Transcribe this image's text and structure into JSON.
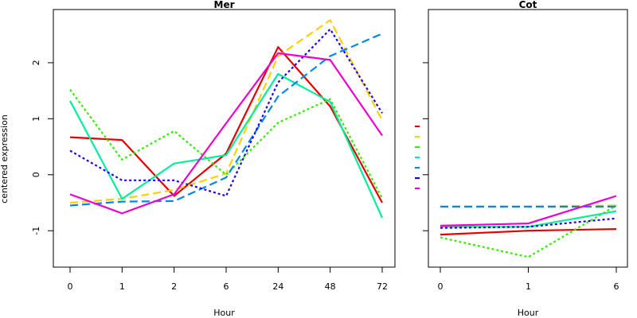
{
  "chart_data": {
    "type": "line",
    "ylabel": "centered expression",
    "ylim": [
      -1.65,
      2.95
    ],
    "y_ticks": [
      -1,
      0,
      1,
      2
    ],
    "y_tick_labels": [
      "-1",
      "0",
      "1",
      "2"
    ],
    "series_style": [
      {
        "color": "#e60000",
        "dash": "solid"
      },
      {
        "color": "#ffd000",
        "dash": "long"
      },
      {
        "color": "#33ee00",
        "dash": "dotted"
      },
      {
        "color": "#00ee99",
        "dash": "solid"
      },
      {
        "color": "#0088ee",
        "dash": "long"
      },
      {
        "color": "#2200ee",
        "dash": "dotted"
      },
      {
        "color": "#ee00cc",
        "dash": "solid"
      }
    ],
    "legend": {
      "placement": "middle-right",
      "labels": [
        "",
        "",
        "",
        "",
        "",
        "",
        ""
      ]
    },
    "panels": [
      {
        "title": "Mer",
        "xlabel": "Hour",
        "categories": [
          "0",
          "1",
          "2",
          "6",
          "24",
          "48",
          "72"
        ],
        "series": [
          {
            "values": [
              0.67,
              0.62,
              -0.38,
              0.38,
              2.28,
              1.22,
              -0.5
            ]
          },
          {
            "values": [
              -0.5,
              -0.43,
              -0.27,
              0.02,
              2.12,
              2.76,
              0.97
            ]
          },
          {
            "values": [
              1.52,
              0.27,
              0.78,
              0.0,
              0.93,
              1.35,
              -0.42
            ]
          },
          {
            "values": [
              1.32,
              -0.43,
              0.2,
              0.35,
              1.8,
              1.3,
              -0.77
            ]
          },
          {
            "values": [
              -0.55,
              -0.48,
              -0.47,
              -0.05,
              1.4,
              2.12,
              2.52
            ]
          },
          {
            "values": [
              0.43,
              -0.1,
              -0.1,
              -0.38,
              1.65,
              2.6,
              1.1
            ]
          },
          {
            "values": [
              -0.35,
              -0.69,
              -0.35,
              0.92,
              2.17,
              2.05,
              0.7
            ]
          }
        ]
      },
      {
        "title": "Cot",
        "xlabel": "Hour",
        "categories": [
          "0",
          "1",
          "6"
        ],
        "series": [
          {
            "values": [
              -1.07,
              -1.0,
              -0.97
            ]
          },
          {
            "values": [
              -0.57,
              -0.57,
              -0.55
            ]
          },
          {
            "values": [
              -1.12,
              -1.47,
              -0.55
            ]
          },
          {
            "values": [
              -0.93,
              -0.93,
              -0.65
            ]
          },
          {
            "values": [
              -0.57,
              -0.57,
              -0.57
            ]
          },
          {
            "values": [
              -0.95,
              -0.93,
              -0.78
            ]
          },
          {
            "values": [
              -0.91,
              -0.87,
              -0.38
            ]
          }
        ]
      }
    ]
  }
}
